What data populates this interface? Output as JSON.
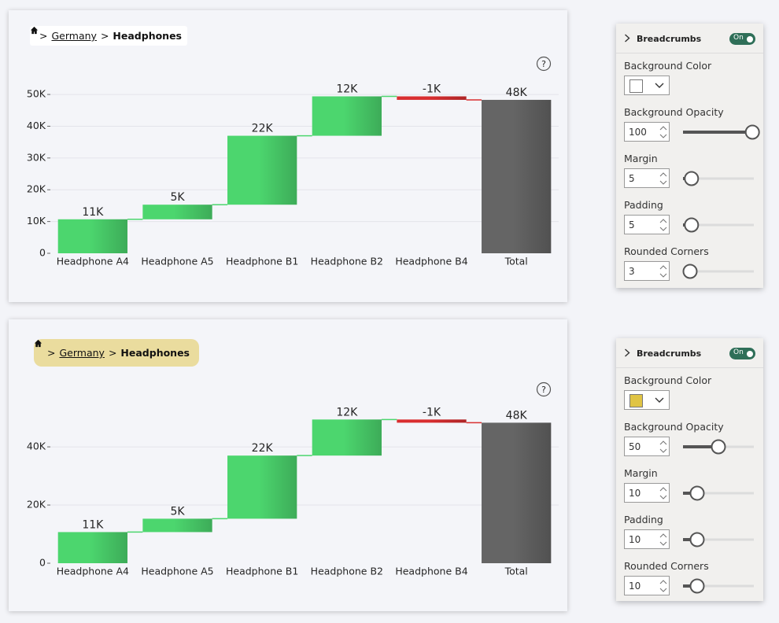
{
  "help_icon": "?",
  "breadcrumbs": [
    {
      "separator": ">",
      "items": [
        "Germany",
        "Headphones"
      ]
    },
    {
      "separator": ">",
      "items": [
        "Germany",
        "Headphones"
      ]
    }
  ],
  "chart_data": [
    {
      "type": "waterfall",
      "categories": [
        "Headphone A4",
        "Headphone A5",
        "Headphone B1",
        "Headphone B2",
        "Headphone B4",
        "Total"
      ],
      "values": [
        10700,
        4600,
        21700,
        12400,
        -1100,
        48300
      ],
      "value_labels": [
        "11K",
        "5K",
        "22K",
        "12K",
        "-1K",
        "48K"
      ],
      "colors": {
        "increase": "#4cd66e",
        "decrease": "#d92e30",
        "total": "#656565"
      },
      "ylim": [
        0,
        52000
      ],
      "yticks": [
        0,
        {
          "value": 10000,
          "label": "10K"
        },
        {
          "value": 20000,
          "label": "20K"
        },
        {
          "value": 30000,
          "label": "30K"
        },
        {
          "value": 40000,
          "label": "40K"
        },
        {
          "value": 50000,
          "label": "50K"
        }
      ],
      "grid": true
    },
    {
      "type": "waterfall",
      "categories": [
        "Headphone A4",
        "Headphone A5",
        "Headphone B1",
        "Headphone B2",
        "Headphone B4",
        "Total"
      ],
      "values": [
        10700,
        4600,
        21700,
        12400,
        -1100,
        48300
      ],
      "value_labels": [
        "11K",
        "5K",
        "22K",
        "12K",
        "-1K",
        "48K"
      ],
      "colors": {
        "increase": "#4cd66e",
        "decrease": "#d92e30",
        "total": "#656565"
      },
      "ylim": [
        0,
        53000
      ],
      "yticks": [
        0,
        {
          "value": 20000,
          "label": "20K"
        },
        {
          "value": 40000,
          "label": "40K"
        }
      ],
      "grid": true
    }
  ],
  "format_panes": [
    {
      "title": "Breadcrumbs",
      "toggle": "On",
      "fields": [
        {
          "label": "Background Color",
          "color": "#ffffff"
        },
        {
          "label": "Background Opacity",
          "value": 100
        },
        {
          "label": "Margin",
          "value": 5
        },
        {
          "label": "Padding",
          "value": 5
        },
        {
          "label": "Rounded Corners",
          "value": 3
        }
      ]
    },
    {
      "title": "Breadcrumbs",
      "toggle": "On",
      "fields": [
        {
          "label": "Background Color",
          "color": "#e0c444"
        },
        {
          "label": "Background Opacity",
          "value": 50
        },
        {
          "label": "Margin",
          "value": 10
        },
        {
          "label": "Padding",
          "value": 10
        },
        {
          "label": "Rounded Corners",
          "value": 10
        }
      ]
    }
  ]
}
